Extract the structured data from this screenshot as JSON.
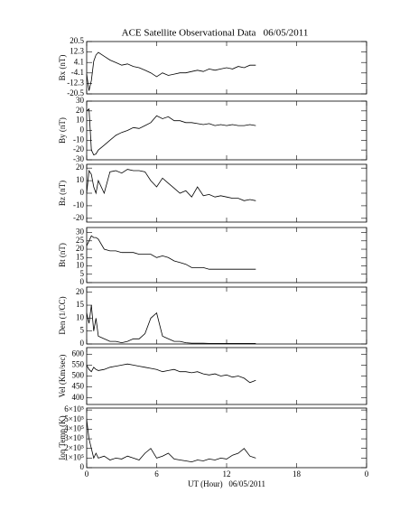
{
  "title": "ACE Satellite Observational Data   06/05/2011",
  "xlabel": "UT (Hour)   06/05/2011",
  "xlim": [
    0,
    24
  ],
  "xticks": [
    0,
    6,
    12,
    18,
    {
      "value": 24,
      "label": "0"
    }
  ],
  "x": [
    0,
    0.2,
    0.4,
    0.6,
    0.8,
    1,
    1.5,
    2,
    2.5,
    3,
    3.5,
    4,
    4.5,
    5,
    5.5,
    6,
    6.5,
    7,
    7.5,
    8,
    8.5,
    9,
    9.5,
    10,
    10.5,
    11,
    11.5,
    12,
    12.5,
    13,
    13.5,
    14,
    14.5
  ],
  "chart_data": [
    {
      "type": "line",
      "ylabel": "Bx (nT)",
      "color": "#000000",
      "ylim": [
        -20.5,
        20.5
      ],
      "yticks": [
        20.5,
        12.3,
        4.1,
        -4.1,
        -12.3,
        -20.5
      ],
      "values": [
        -5,
        -18,
        -10,
        5,
        10,
        12,
        9,
        6,
        4,
        2,
        3,
        1,
        0,
        -2,
        -4,
        -7,
        -4,
        -6,
        -5,
        -4,
        -4,
        -3,
        -2,
        -3,
        -1,
        -2,
        -1,
        0,
        -1,
        1,
        0,
        2,
        2
      ]
    },
    {
      "type": "line",
      "ylabel": "By (nT)",
      "color": "#000000",
      "ylim": [
        -30,
        30
      ],
      "yticks": [
        30,
        20,
        10,
        0,
        -10,
        -20,
        -30
      ],
      "values": [
        20,
        22,
        -20,
        -25,
        -24,
        -20,
        -15,
        -10,
        -5,
        -2,
        0,
        3,
        2,
        5,
        8,
        15,
        12,
        14,
        10,
        10,
        8,
        8,
        7,
        6,
        7,
        5,
        6,
        5,
        6,
        5,
        5,
        6,
        5
      ]
    },
    {
      "type": "line",
      "ylabel": "Bz (nT)",
      "color": "#000000",
      "ylim": [
        -23,
        23
      ],
      "yticks": [
        20,
        10,
        0,
        -10,
        -20
      ],
      "values": [
        0,
        18,
        15,
        5,
        0,
        10,
        0,
        17,
        18,
        16,
        19,
        18,
        18,
        17,
        10,
        5,
        12,
        8,
        4,
        0,
        2,
        -3,
        5,
        -2,
        -1,
        -3,
        -2,
        -3,
        -4,
        -4,
        -6,
        -5,
        -6
      ]
    },
    {
      "type": "line",
      "ylabel": "Bt (nT)",
      "color": "#000000",
      "ylim": [
        0,
        33
      ],
      "yticks": [
        30,
        25,
        20,
        15,
        10,
        5,
        0
      ],
      "values": [
        22,
        25,
        28,
        27,
        27,
        26,
        20,
        19,
        19,
        18,
        18,
        18,
        17,
        17,
        17,
        15,
        16,
        15,
        13,
        12,
        11,
        9,
        9,
        9,
        8,
        8,
        8,
        8,
        8,
        8,
        8,
        8,
        8
      ]
    },
    {
      "type": "line",
      "ylabel": "Den (1/CC)",
      "color": "#000000",
      "ylim": [
        0,
        22
      ],
      "yticks": [
        20,
        15,
        10,
        5,
        0
      ],
      "values": [
        12,
        8,
        15,
        5,
        10,
        3,
        2,
        1,
        1,
        0.5,
        1,
        2,
        2,
        4,
        10,
        12,
        3,
        2,
        1,
        1,
        0.5,
        0.3,
        0.3,
        0.3,
        0.2,
        0.2,
        0.2,
        0.2,
        0.2,
        0.2,
        0.2,
        0.2,
        0.2
      ]
    },
    {
      "type": "line",
      "ylabel": "Vel (Km/sec)",
      "color": "#000000",
      "ylim": [
        370,
        630
      ],
      "yticks": [
        600,
        550,
        500,
        450,
        400
      ],
      "values": [
        550,
        530,
        520,
        540,
        530,
        525,
        530,
        540,
        545,
        550,
        555,
        550,
        545,
        540,
        535,
        530,
        520,
        525,
        530,
        520,
        520,
        515,
        520,
        510,
        505,
        510,
        500,
        505,
        495,
        500,
        490,
        470,
        480
      ]
    },
    {
      "type": "line",
      "ylabel": "Ion Temp (K)",
      "color": "#000000",
      "ylim": [
        0,
        620000
      ],
      "yticks": [
        {
          "value": 600000,
          "label": "6×10⁵"
        },
        {
          "value": 500000,
          "label": "5×10⁵"
        },
        {
          "value": 400000,
          "label": "4×10⁵"
        },
        {
          "value": 300000,
          "label": "3×10⁵"
        },
        {
          "value": 200000,
          "label": "2×10⁵"
        },
        {
          "value": 100000,
          "label": "1×10⁵"
        },
        0
      ],
      "values": [
        500000,
        300000,
        200000,
        100000,
        150000,
        100000,
        120000,
        80000,
        100000,
        90000,
        120000,
        100000,
        80000,
        150000,
        200000,
        100000,
        120000,
        150000,
        90000,
        80000,
        70000,
        60000,
        80000,
        70000,
        90000,
        80000,
        100000,
        90000,
        130000,
        150000,
        200000,
        120000,
        100000
      ]
    }
  ]
}
